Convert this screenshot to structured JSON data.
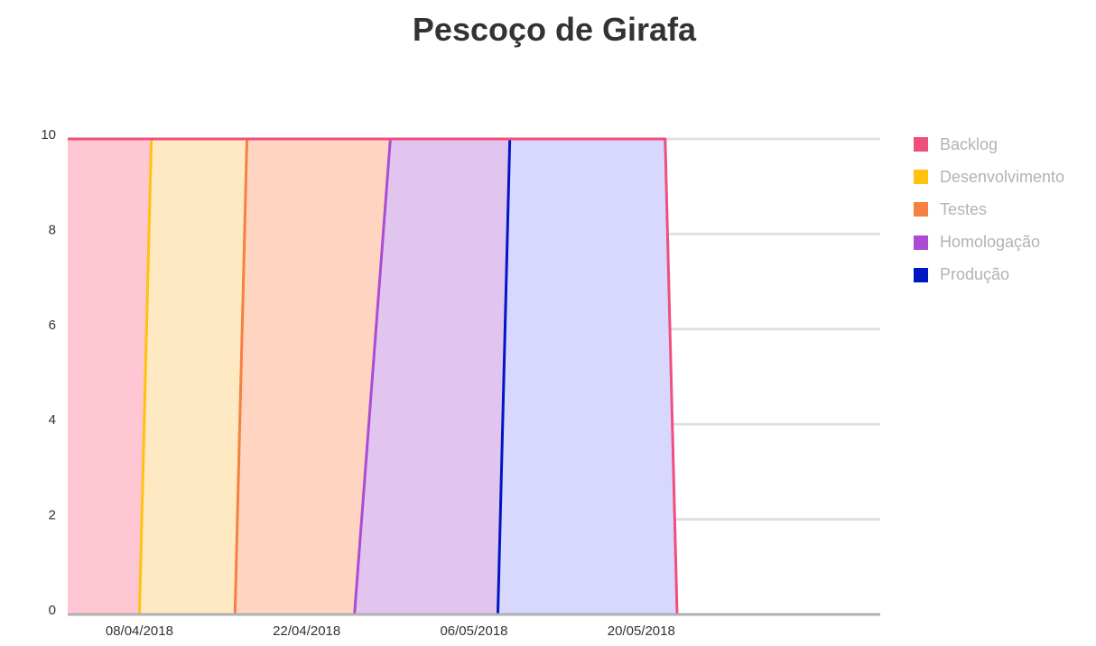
{
  "chart_data": {
    "type": "area",
    "title": "Pescoço de Girafa",
    "xlabel": "",
    "ylabel": "",
    "x_tick_labels": [
      "08/04/2018",
      "22/04/2018",
      "06/05/2018",
      "20/05/2018"
    ],
    "y_tick_labels": [
      "0",
      "2",
      "4",
      "6",
      "8",
      "10"
    ],
    "ylim": [
      0,
      10
    ],
    "grid": true,
    "legend_position": "right",
    "series": [
      {
        "name": "Backlog",
        "color": "#f04e7d",
        "fill": "#ffc6d4",
        "points": [
          [
            "2018-04-02",
            10
          ],
          [
            "2018-05-22",
            10
          ],
          [
            "2018-05-23",
            0
          ],
          [
            "2018-06-09",
            0
          ]
        ]
      },
      {
        "name": "Desenvolvimento",
        "color": "#ffc20e",
        "fill": "#ffe9c2",
        "points": [
          [
            "2018-04-02",
            0
          ],
          [
            "2018-04-08",
            0
          ],
          [
            "2018-04-09",
            10
          ]
        ]
      },
      {
        "name": "Testes",
        "color": "#f6803f",
        "fill": "#ffd5c2",
        "points": [
          [
            "2018-04-02",
            0
          ],
          [
            "2018-04-16",
            0
          ],
          [
            "2018-04-17",
            10
          ]
        ]
      },
      {
        "name": "Homologação",
        "color": "#ab4cd4",
        "fill": "#e2c5ef",
        "points": [
          [
            "2018-04-02",
            0
          ],
          [
            "2018-04-26",
            0
          ],
          [
            "2018-04-29",
            10
          ]
        ]
      },
      {
        "name": "Produção",
        "color": "#0016c4",
        "fill": "#d8d8ff",
        "points": [
          [
            "2018-04-02",
            0
          ],
          [
            "2018-05-08",
            0
          ],
          [
            "2018-05-09",
            10
          ]
        ]
      }
    ]
  }
}
